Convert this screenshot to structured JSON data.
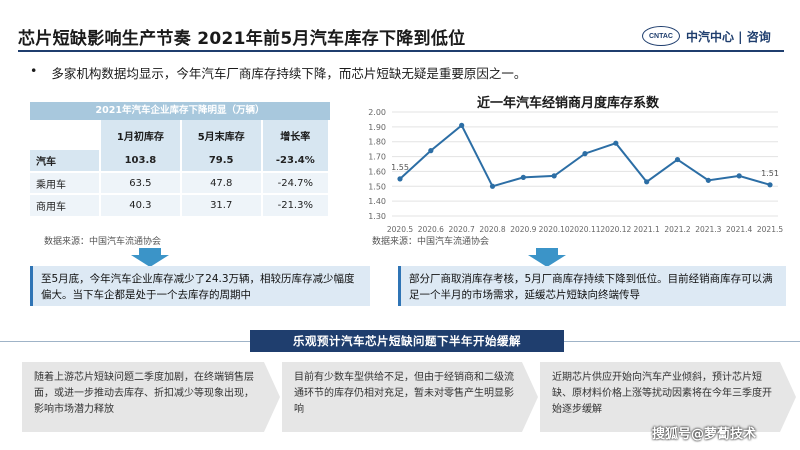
{
  "header": {
    "title": "芯片短缺影响生产节奏 2021年前5月汽车库存下降到低位",
    "logo_mark": "CNTAC",
    "logo_text": "中汽中心 | 咨询"
  },
  "bullet": {
    "dot": "•",
    "text": "多家机构数据均显示，今年汽车厂商库存持续下降，而芯片短缺无疑是重要原因之一。"
  },
  "table": {
    "title": "2021年汽车企业库存下降明显（万辆）",
    "headers": [
      "",
      "1月初库存",
      "5月末库存",
      "增长率"
    ],
    "rows": [
      {
        "name": "汽车",
        "jan": "103.8",
        "may": "79.5",
        "growth": "-23.4%"
      },
      {
        "name": "乘用车",
        "jan": "63.5",
        "may": "47.8",
        "growth": "-24.7%"
      },
      {
        "name": "商用车",
        "jan": "40.3",
        "may": "31.7",
        "growth": "-21.3%"
      }
    ],
    "source": "数据来源：中国汽车流通协会"
  },
  "chart_data": {
    "type": "line",
    "title": "近一年汽车经销商月度库存系数",
    "xlabel": "",
    "ylabel": "",
    "categories": [
      "2020.5",
      "2020.6",
      "2020.7",
      "2020.8",
      "2020.9",
      "2020.10",
      "2020.11",
      "2020.12",
      "2021.1",
      "2021.2",
      "2021.3",
      "2021.4",
      "2021.5"
    ],
    "series": [
      {
        "values": [
          1.55,
          1.74,
          1.91,
          1.5,
          1.56,
          1.57,
          1.72,
          1.79,
          1.53,
          1.68,
          1.54,
          1.57,
          1.51
        ]
      }
    ],
    "ylim": [
      1.3,
      2.0
    ],
    "yticks": [
      "1.30",
      "1.40",
      "1.50",
      "1.60",
      "1.70",
      "1.80",
      "1.90",
      "2.00"
    ],
    "data_labels": {
      "first": "1.55",
      "last": "1.51"
    },
    "grid": true,
    "line_color": "#2c6ea5",
    "source": "数据来源：中国汽车流通协会"
  },
  "callouts": {
    "left": "至5月底，今年汽车企业库存减少了24.3万辆，相较历库存减少幅度偏大。当下车企都是处于一个去库存的周期中",
    "right": "部分厂商取消库存考核，5月厂商库存持续下降到低位。目前经销商库存可以满足一个半月的市场需求，延缓芯片短缺向终端传导"
  },
  "banner": {
    "text": "乐观预计汽车芯片短缺问题下半年开始缓解"
  },
  "cards": [
    {
      "text": "随着上游芯片短缺问题二季度加剧，在终端销售层面，或进一步推动去库存、折扣减少等现象出现，影响市场潜力释放"
    },
    {
      "text": "目前有少数车型供给不足，但由于经销商和二级流通环节的库存仍相对充足，暂未对零售产生明显影响"
    },
    {
      "text": "近期芯片供应开始向汽车产业倾斜，预计芯片短缺、原材料价格上涨等扰动因素将在今年三季度开始逐步缓解"
    }
  ],
  "watermark": {
    "text": "搜狐号@萝蔔技术"
  }
}
